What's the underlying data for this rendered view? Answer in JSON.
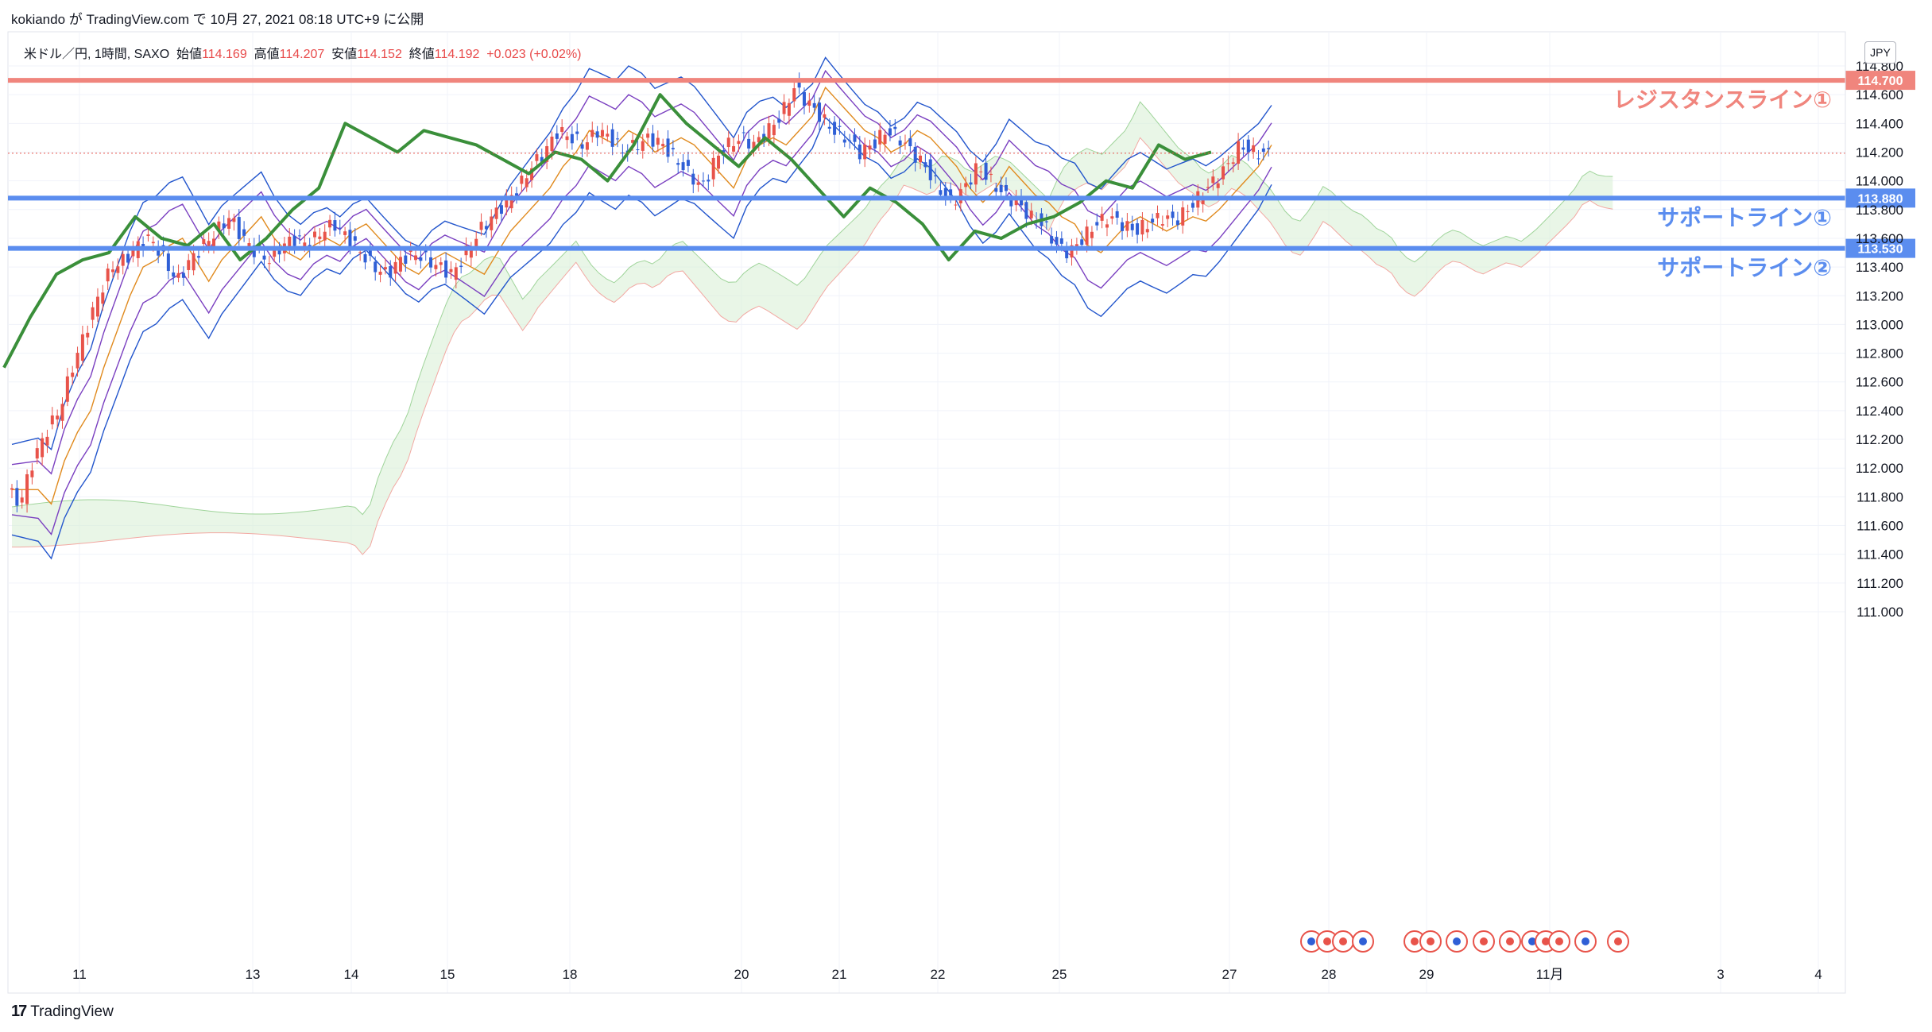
{
  "header": {
    "publisher": "kokiando",
    "ga": "が",
    "platform": "TradingView.com",
    "de": "で",
    "published_at": "10月 27, 2021 08:18 UTC+9",
    "suffix": "に公開"
  },
  "symbol_line": {
    "symbol": "米ドル／円, 1時間, SAXO",
    "open_label": "始値",
    "open": "114.169",
    "high_label": "高値",
    "high": "114.207",
    "low_label": "安値",
    "low": "114.152",
    "close_label": "終値",
    "close": "114.192",
    "change": "+0.023 (+0.02%)"
  },
  "currency_label": "JPY",
  "footer": {
    "logo": "17",
    "brand": "TradingView"
  },
  "colors": {
    "resistance": "#f0857d",
    "support": "#5b8def",
    "up_candle": "#e8534a",
    "down_candle": "#2f5fd6",
    "chikou": "#3a8f3a",
    "bb_outer": "#2255cc",
    "bb_inner": "#7a3fc0",
    "ma": "#e08a1e"
  },
  "chart_data": {
    "type": "candlestick",
    "instrument": "USD/JPY",
    "timeframe": "1h",
    "source": "SAXO",
    "ylim": [
      110.95,
      115.2
    ],
    "y_ticks": [
      "111.000",
      "111.200",
      "111.400",
      "111.600",
      "111.800",
      "112.000",
      "112.200",
      "112.400",
      "112.600",
      "112.800",
      "113.000",
      "113.200",
      "113.400",
      "113.600",
      "113.800",
      "114.000",
      "114.200",
      "114.400",
      "114.600",
      "114.800"
    ],
    "x_ticks": [
      "11",
      "13",
      "14",
      "15",
      "18",
      "20",
      "21",
      "22",
      "25",
      "27",
      "28",
      "29",
      "11月",
      "3",
      "4"
    ],
    "levels": [
      {
        "label": "レジスタンスライン①",
        "value": 114.7,
        "value_label": "114.700",
        "kind": "resistance"
      },
      {
        "label": "サポートライン①",
        "value": 113.88,
        "value_label": "113.880",
        "kind": "support"
      },
      {
        "label": "サポートライン②",
        "value": 113.53,
        "value_label": "113.530",
        "kind": "support"
      }
    ],
    "last_price": 114.192,
    "price_path": [
      [
        0,
        111.85
      ],
      [
        1,
        111.75
      ],
      [
        2,
        112.05
      ],
      [
        3,
        112.25
      ],
      [
        4,
        112.4
      ],
      [
        5,
        112.7
      ],
      [
        6,
        112.95
      ],
      [
        7,
        113.2
      ],
      [
        8,
        113.4
      ],
      [
        9,
        113.45
      ],
      [
        10,
        113.55
      ],
      [
        11,
        113.6
      ],
      [
        12,
        113.45
      ],
      [
        13,
        113.3
      ],
      [
        14,
        113.45
      ],
      [
        15,
        113.55
      ],
      [
        16,
        113.65
      ],
      [
        17,
        113.75
      ],
      [
        18,
        113.6
      ],
      [
        19,
        113.5
      ],
      [
        20,
        113.45
      ],
      [
        21,
        113.55
      ],
      [
        22,
        113.6
      ],
      [
        23,
        113.55
      ],
      [
        24,
        113.65
      ],
      [
        25,
        113.7
      ],
      [
        26,
        113.6
      ],
      [
        27,
        113.5
      ],
      [
        28,
        113.4
      ],
      [
        29,
        113.35
      ],
      [
        30,
        113.45
      ],
      [
        31,
        113.5
      ],
      [
        32,
        113.45
      ],
      [
        33,
        113.4
      ],
      [
        34,
        113.35
      ],
      [
        35,
        113.5
      ],
      [
        36,
        113.65
      ],
      [
        37,
        113.75
      ],
      [
        38,
        113.85
      ],
      [
        39,
        113.95
      ],
      [
        40,
        114.1
      ],
      [
        41,
        114.2
      ],
      [
        42,
        114.35
      ],
      [
        43,
        114.3
      ],
      [
        44,
        114.25
      ],
      [
        45,
        114.35
      ],
      [
        46,
        114.3
      ],
      [
        47,
        114.2
      ],
      [
        48,
        114.25
      ],
      [
        49,
        114.3
      ],
      [
        50,
        114.25
      ],
      [
        51,
        114.15
      ],
      [
        52,
        114.05
      ],
      [
        53,
        113.95
      ],
      [
        54,
        114.15
      ],
      [
        55,
        114.25
      ],
      [
        56,
        114.3
      ],
      [
        57,
        114.25
      ],
      [
        58,
        114.35
      ],
      [
        59,
        114.45
      ],
      [
        60,
        114.65
      ],
      [
        61,
        114.55
      ],
      [
        62,
        114.45
      ],
      [
        63,
        114.35
      ],
      [
        64,
        114.3
      ],
      [
        65,
        114.2
      ],
      [
        66,
        114.25
      ],
      [
        67,
        114.35
      ],
      [
        68,
        114.3
      ],
      [
        69,
        114.2
      ],
      [
        70,
        114.1
      ],
      [
        71,
        113.95
      ],
      [
        72,
        113.85
      ],
      [
        73,
        113.95
      ],
      [
        74,
        114.1
      ],
      [
        75,
        114.0
      ],
      [
        76,
        113.9
      ],
      [
        77,
        113.85
      ],
      [
        78,
        113.75
      ],
      [
        79,
        113.7
      ],
      [
        80,
        113.55
      ],
      [
        81,
        113.5
      ],
      [
        82,
        113.6
      ],
      [
        83,
        113.7
      ],
      [
        84,
        113.75
      ],
      [
        85,
        113.7
      ],
      [
        86,
        113.65
      ],
      [
        87,
        113.7
      ],
      [
        88,
        113.75
      ],
      [
        89,
        113.72
      ],
      [
        90,
        113.8
      ],
      [
        91,
        113.9
      ],
      [
        92,
        114.0
      ],
      [
        93,
        114.1
      ],
      [
        94,
        114.25
      ],
      [
        95,
        114.2
      ],
      [
        96,
        114.19
      ]
    ],
    "chikou_path": [
      [
        0,
        112.7
      ],
      [
        2,
        113.05
      ],
      [
        4,
        113.35
      ],
      [
        6,
        113.45
      ],
      [
        8,
        113.5
      ],
      [
        10,
        113.75
      ],
      [
        12,
        113.6
      ],
      [
        14,
        113.55
      ],
      [
        16,
        113.7
      ],
      [
        18,
        113.45
      ],
      [
        20,
        113.6
      ],
      [
        22,
        113.8
      ],
      [
        24,
        113.95
      ],
      [
        26,
        114.4
      ],
      [
        28,
        114.3
      ],
      [
        30,
        114.2
      ],
      [
        32,
        114.35
      ],
      [
        34,
        114.3
      ],
      [
        36,
        114.25
      ],
      [
        38,
        114.15
      ],
      [
        40,
        114.05
      ],
      [
        42,
        114.2
      ],
      [
        44,
        114.15
      ],
      [
        46,
        114.0
      ],
      [
        48,
        114.25
      ],
      [
        50,
        114.6
      ],
      [
        52,
        114.4
      ],
      [
        54,
        114.25
      ],
      [
        56,
        114.1
      ],
      [
        58,
        114.3
      ],
      [
        60,
        114.15
      ],
      [
        62,
        113.95
      ],
      [
        64,
        113.75
      ],
      [
        66,
        113.95
      ],
      [
        68,
        113.85
      ],
      [
        70,
        113.7
      ],
      [
        72,
        113.45
      ],
      [
        74,
        113.65
      ],
      [
        76,
        113.6
      ],
      [
        78,
        113.7
      ],
      [
        80,
        113.75
      ],
      [
        82,
        113.85
      ],
      [
        84,
        114.0
      ],
      [
        86,
        113.95
      ],
      [
        88,
        114.25
      ],
      [
        90,
        114.15
      ],
      [
        92,
        114.2
      ]
    ]
  }
}
